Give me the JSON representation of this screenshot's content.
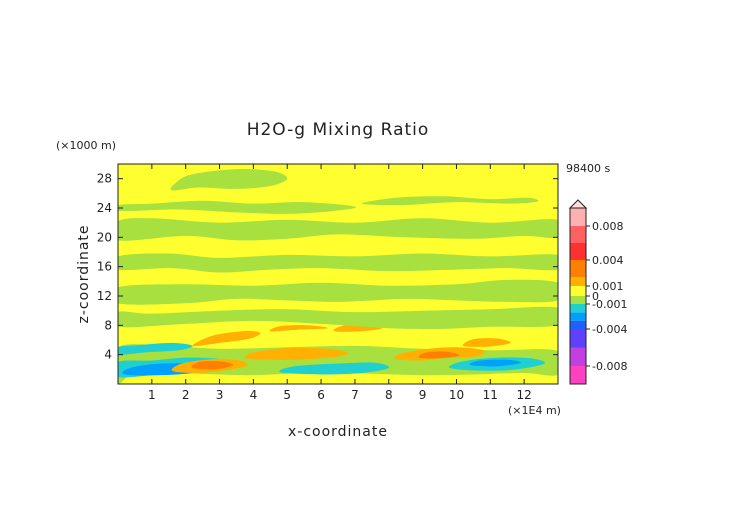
{
  "chart_data": {
    "type": "heatmap",
    "title": "H2O-g Mixing Ratio",
    "xlabel": "x-coordinate",
    "ylabel": "z-coordinate",
    "x_unit": "(×1E4 m)",
    "y_unit": "(×1000 m)",
    "time_label": "98400 s",
    "xlim": [
      0,
      13
    ],
    "ylim": [
      0,
      30
    ],
    "x_ticks": [
      "1",
      "2",
      "3",
      "4",
      "5",
      "6",
      "7",
      "8",
      "9",
      "10",
      "11",
      "12"
    ],
    "y_ticks": [
      "4",
      "8",
      "12",
      "16",
      "20",
      "24",
      "28"
    ],
    "x_tick_values": [
      1,
      2,
      3,
      4,
      5,
      6,
      7,
      8,
      9,
      10,
      11,
      12
    ],
    "y_tick_values": [
      4,
      8,
      12,
      16,
      20,
      24,
      28
    ],
    "background_level": "0 to 0.001 (yellow)",
    "colorbar": {
      "labels": [
        "0.008",
        "0.004",
        "0.001",
        "0",
        "-0.001",
        "-0.004",
        "-0.008"
      ],
      "label_values": [
        0.008,
        0.004,
        0.001,
        0,
        -0.001,
        -0.004,
        -0.008
      ],
      "colors": [
        {
          "from": -0.01,
          "to": -0.008,
          "color": "#ff40c0"
        },
        {
          "from": -0.008,
          "to": -0.006,
          "color": "#c040e0"
        },
        {
          "from": -0.006,
          "to": -0.004,
          "color": "#6040ff"
        },
        {
          "from": -0.004,
          "to": -0.003,
          "color": "#2060ff"
        },
        {
          "from": -0.003,
          "to": -0.002,
          "color": "#00a0ff"
        },
        {
          "from": -0.002,
          "to": -0.001,
          "color": "#20d0d0"
        },
        {
          "from": -0.001,
          "to": 0,
          "color": "#a8e040"
        },
        {
          "from": 0,
          "to": 0.001,
          "color": "#ffff30"
        },
        {
          "from": 0.001,
          "to": 0.002,
          "color": "#ffb000"
        },
        {
          "from": 0.002,
          "to": 0.004,
          "color": "#ff8000"
        },
        {
          "from": 0.004,
          "to": 0.006,
          "color": "#ff3030"
        },
        {
          "from": 0.006,
          "to": 0.008,
          "color": "#ff6060"
        },
        {
          "from": 0.008,
          "to": 0.01,
          "color": "#ffb0b0"
        }
      ]
    },
    "regions": [
      {
        "value": -0.0005,
        "color": "#a8e040",
        "x": [
          0.0,
          0.4,
          1.5,
          3,
          4,
          5,
          6,
          7.5,
          9,
          10.5,
          12,
          13,
          13,
          11,
          9,
          7,
          5,
          3,
          1.5,
          0
        ],
        "y": [
          0.2,
          1.2,
          1.5,
          1.3,
          1.2,
          1.4,
          1.6,
          1.4,
          1.2,
          1.3,
          1.5,
          1.3,
          4.5,
          4.6,
          4.8,
          5.2,
          5.0,
          4.8,
          5.2,
          5.0
        ]
      },
      {
        "value": -0.0015,
        "color": "#20d0d0",
        "x": [
          0,
          1,
          2,
          3,
          3.5,
          3,
          2,
          1,
          0
        ],
        "y": [
          1.0,
          1.2,
          1.5,
          1.8,
          2.6,
          3.4,
          3.6,
          3.2,
          3.0
        ]
      },
      {
        "value": -0.0015,
        "color": "#20d0d0",
        "x": [
          0,
          0.8,
          1.8,
          2.2,
          1.6,
          0.6,
          0
        ],
        "y": [
          4.0,
          4.3,
          4.6,
          5.2,
          5.6,
          5.3,
          5.0
        ]
      },
      {
        "value": -0.0015,
        "color": "#20d0d0",
        "x": [
          4.8,
          6,
          7.2,
          8,
          7.6,
          6.5,
          5.2
        ],
        "y": [
          1.6,
          1.3,
          1.5,
          2.2,
          2.9,
          2.8,
          2.4
        ]
      },
      {
        "value": -0.0015,
        "color": "#20d0d0",
        "x": [
          9.8,
          10.8,
          11.8,
          12.6,
          12.2,
          11.2,
          10.2
        ],
        "y": [
          2.2,
          1.8,
          2.0,
          2.8,
          3.5,
          3.6,
          3.1
        ]
      },
      {
        "value": -0.0025,
        "color": "#00a0ff",
        "x": [
          0.2,
          1.2,
          2.2,
          2.6,
          2.0,
          1.0,
          0.3
        ],
        "y": [
          1.3,
          1.2,
          1.5,
          2.2,
          2.8,
          2.7,
          2.1
        ]
      },
      {
        "value": -0.0025,
        "color": "#00a0ff",
        "x": [
          10.4,
          11.2,
          11.9,
          11.5,
          10.7
        ],
        "y": [
          2.6,
          2.4,
          2.9,
          3.3,
          3.2
        ]
      },
      {
        "value": 0.0015,
        "color": "#ffb000",
        "x": [
          1.6,
          2.3,
          3.2,
          3.8,
          3.6,
          2.8,
          1.9
        ],
        "y": [
          1.8,
          1.5,
          1.9,
          2.5,
          3.2,
          3.4,
          2.8
        ]
      },
      {
        "value": 0.0015,
        "color": "#ffb000",
        "x": [
          3.8,
          5,
          6.2,
          6.8,
          6.2,
          5.0,
          4.0
        ],
        "y": [
          3.5,
          3.3,
          3.6,
          4.2,
          4.8,
          4.9,
          4.3
        ]
      },
      {
        "value": 0.0015,
        "color": "#ffb000",
        "x": [
          8.2,
          9,
          9.6,
          10.6,
          10.8,
          10.0,
          9.2,
          8.4
        ],
        "y": [
          3.4,
          3.2,
          3.5,
          3.8,
          4.6,
          5.0,
          4.8,
          4.2
        ]
      },
      {
        "value": 0.0015,
        "color": "#ffb000",
        "x": [
          10.2,
          10.9,
          11.6,
          11.2,
          10.5
        ],
        "y": [
          5.2,
          5.1,
          5.6,
          6.2,
          6.1
        ]
      },
      {
        "value": 0.0015,
        "color": "#ffb000",
        "x": [
          2.2,
          3.0,
          3.9,
          4.2,
          3.7,
          2.8
        ],
        "y": [
          5.2,
          5.6,
          6.2,
          7.0,
          7.2,
          6.6
        ]
      },
      {
        "value": 0.0015,
        "color": "#ffb000",
        "x": [
          4.5,
          5.3,
          6.2,
          5.6,
          4.8
        ],
        "y": [
          7.2,
          7.4,
          7.6,
          8.0,
          7.9
        ]
      },
      {
        "value": 0.0015,
        "color": "#ffb000",
        "x": [
          6.4,
          7.2,
          7.8,
          7.2,
          6.6
        ],
        "y": [
          7.2,
          7.2,
          7.6,
          8.1,
          7.9
        ]
      },
      {
        "value": 0.0025,
        "color": "#ff8000",
        "x": [
          2.2,
          2.9,
          3.4,
          3.0,
          2.4
        ],
        "y": [
          2.2,
          2.0,
          2.6,
          3.1,
          3.0
        ]
      },
      {
        "value": 0.0025,
        "color": "#ff8000",
        "x": [
          8.9,
          9.5,
          10.1,
          9.7,
          9.1
        ],
        "y": [
          3.6,
          3.5,
          3.9,
          4.4,
          4.3
        ]
      },
      {
        "value": -0.0005,
        "color": "#a8e040",
        "x": [
          0,
          2,
          4,
          6,
          8,
          9.5,
          11,
          13,
          13,
          11,
          9,
          7,
          5,
          3,
          1,
          0
        ],
        "y": [
          7.8,
          8.2,
          8.6,
          8.2,
          7.6,
          7.5,
          7.8,
          8.0,
          10.4,
          10.2,
          10.0,
          9.8,
          10.2,
          10.0,
          9.6,
          9.8
        ]
      },
      {
        "value": -0.0005,
        "color": "#a8e040",
        "x": [
          0,
          2,
          3.5,
          5,
          6.5,
          8.5,
          10,
          11.5,
          13,
          13,
          11.5,
          10,
          8,
          6,
          4,
          2,
          0
        ],
        "y": [
          11.0,
          11.0,
          11.6,
          11.4,
          11.2,
          11.6,
          11.4,
          11.2,
          11.4,
          13.8,
          14.2,
          13.6,
          13.4,
          13.8,
          13.4,
          13.6,
          13.2
        ]
      },
      {
        "value": -0.0005,
        "color": "#a8e040",
        "x": [
          0,
          1.6,
          3,
          4.5,
          6,
          8,
          10,
          11.5,
          13,
          13,
          11,
          9,
          7,
          5,
          3,
          1.5,
          0
        ],
        "y": [
          15.6,
          15.8,
          15.2,
          15.6,
          15.8,
          15.4,
          15.6,
          15.8,
          15.6,
          17.6,
          17.4,
          17.8,
          17.4,
          17.6,
          17.2,
          17.8,
          17.4
        ]
      },
      {
        "value": -0.0005,
        "color": "#a8e040",
        "x": [
          0,
          2,
          3.5,
          5,
          6.5,
          8.5,
          10.5,
          12,
          13,
          13,
          11,
          9,
          7,
          5,
          3,
          1,
          0
        ],
        "y": [
          19.6,
          20.2,
          19.6,
          19.8,
          20.4,
          20.0,
          19.8,
          20.2,
          20.0,
          22.4,
          22.0,
          22.6,
          22.0,
          22.4,
          22.0,
          22.6,
          22.2
        ]
      },
      {
        "value": -0.0005,
        "color": "#a8e040",
        "x": [
          0,
          1.8,
          3.5,
          5,
          6.4,
          7,
          5.5,
          4,
          2.5,
          1,
          0
        ],
        "y": [
          23.6,
          23.8,
          23.4,
          23.2,
          23.6,
          24.2,
          24.8,
          24.6,
          25.0,
          24.6,
          24.4
        ]
      },
      {
        "value": -0.0005,
        "color": "#a8e040",
        "x": [
          7.2,
          8.4,
          10,
          11.6,
          12.4,
          12.1,
          11.0,
          9.6,
          8.2
        ],
        "y": [
          24.6,
          24.4,
          24.8,
          24.6,
          24.9,
          25.4,
          25.2,
          25.6,
          25.4
        ]
      },
      {
        "value": -0.0005,
        "color": "#a8e040",
        "x": [
          1.6,
          2.4,
          3.5,
          4.5,
          5.0,
          4.6,
          3.5,
          2.2,
          1.7
        ],
        "y": [
          26.4,
          26.8,
          26.6,
          27.0,
          28.0,
          29.0,
          29.3,
          28.6,
          27.4
        ]
      }
    ]
  }
}
